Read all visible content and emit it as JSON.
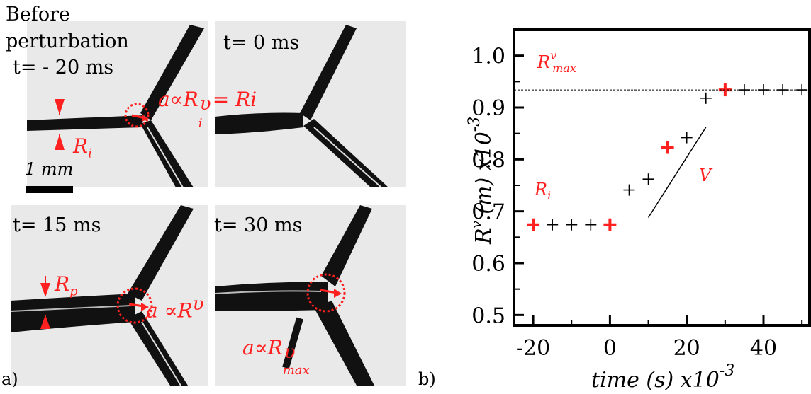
{
  "panel_a": {
    "letter": "a)",
    "scale_bar_label": "1 mm",
    "frames": [
      {
        "id": "tl",
        "label_line1": "Before",
        "label_line2": "perturbation",
        "time": "t= - 20 ms"
      },
      {
        "id": "tr",
        "time": "t= 0 ms"
      },
      {
        "id": "bl",
        "time": "t= 15 ms"
      },
      {
        "id": "br",
        "time": "t= 30 ms"
      }
    ],
    "annotations": {
      "ri_label": "R",
      "ri_sub": "i",
      "a_prop_ri": "a∝R",
      "a_prop_ri_sub": "i",
      "a_prop_ri_sup": "υ",
      "a_prop_ri_eq": "= Ri",
      "rp_label": "R",
      "rp_sub": "p",
      "a_prop_rv": "a ∝R",
      "a_prop_rv_sup": "υ",
      "a_prop_rvmax": "a∝R",
      "a_prop_rvmax_sup": "υ",
      "a_prop_rvmax_sub": "max"
    },
    "colors": {
      "annotation": "#ff2020",
      "film": "#111111"
    }
  },
  "panel_b": {
    "letter": "b)",
    "annotations": {
      "rvmax_main": "R",
      "rvmax_sup": "v",
      "rvmax_sub": "max",
      "ri_main": "R",
      "ri_sub": "i",
      "v_label": "V"
    }
  },
  "chart_data": {
    "type": "scatter",
    "xlabel": "time (s) x10",
    "xlabel_exp": "-3",
    "ylabel_main": "R",
    "ylabel_sup": "v",
    "ylabel_rest": "(m) x10",
    "ylabel_exp": "-3",
    "xlim": [
      -25,
      52
    ],
    "ylim": [
      0.48,
      1.05
    ],
    "x_ticks": [
      -20,
      0,
      20,
      40
    ],
    "x_tick_labels": [
      "-20",
      "0",
      "20",
      "40"
    ],
    "y_ticks": [
      0.5,
      0.6,
      0.7,
      0.8,
      0.9,
      1.0
    ],
    "y_tick_labels": [
      "0.5",
      "0.6",
      "0.7",
      "0.8",
      "0.9",
      "1.0"
    ],
    "rvmax_line_y": 0.934,
    "points": [
      {
        "x": -20,
        "y": 0.674,
        "highlight": true
      },
      {
        "x": -15,
        "y": 0.674,
        "highlight": false
      },
      {
        "x": -10,
        "y": 0.674,
        "highlight": false
      },
      {
        "x": -5,
        "y": 0.674,
        "highlight": false
      },
      {
        "x": 0,
        "y": 0.674,
        "highlight": true
      },
      {
        "x": 5,
        "y": 0.741,
        "highlight": false
      },
      {
        "x": 10,
        "y": 0.762,
        "highlight": false
      },
      {
        "x": 15,
        "y": 0.823,
        "highlight": true
      },
      {
        "x": 20,
        "y": 0.842,
        "highlight": false
      },
      {
        "x": 25,
        "y": 0.918,
        "highlight": false
      },
      {
        "x": 30,
        "y": 0.934,
        "highlight": true
      },
      {
        "x": 35,
        "y": 0.934,
        "highlight": false
      },
      {
        "x": 40,
        "y": 0.934,
        "highlight": false
      },
      {
        "x": 45,
        "y": 0.934,
        "highlight": false
      },
      {
        "x": 50,
        "y": 0.934,
        "highlight": false
      }
    ],
    "slope_line": {
      "x": [
        10,
        25
      ],
      "y": [
        0.688,
        0.862
      ]
    },
    "colors": {
      "highlight": "#ff2020",
      "normal": "#000000"
    }
  }
}
